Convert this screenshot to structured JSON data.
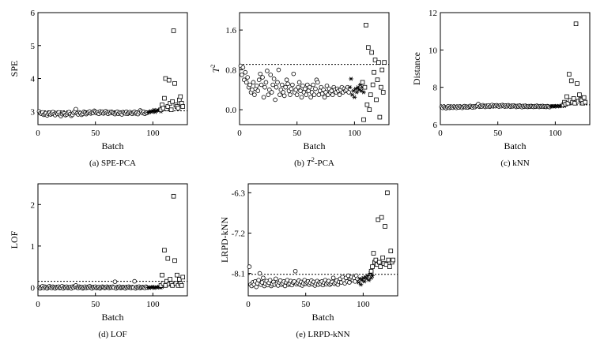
{
  "chart_data": [
    {
      "id": "a",
      "type": "scatter",
      "caption": "(a) SPE-PCA",
      "ylabel": "SPE",
      "xlabel": "Batch",
      "xlim": [
        0,
        130
      ],
      "ylim": [
        2.6,
        6
      ],
      "xticks": [
        0,
        50,
        100
      ],
      "yticks": [
        3,
        4,
        5,
        6
      ],
      "ytick_labels": [
        "3",
        "4",
        "5",
        "6"
      ],
      "control_limit": 3.02,
      "training": {
        "start": 1,
        "values": [
          3.0,
          2.95,
          2.93,
          2.97,
          2.9,
          2.92,
          2.95,
          2.88,
          2.93,
          2.96,
          2.91,
          2.94,
          2.98,
          2.92,
          2.89,
          2.95,
          2.93,
          2.97,
          2.9,
          2.86,
          2.92,
          2.96,
          2.94,
          2.89,
          2.91,
          2.95,
          2.98,
          2.92,
          2.87,
          2.9,
          2.96,
          3.0,
          3.07,
          2.94,
          2.91,
          2.97,
          2.95,
          2.9,
          2.93,
          2.99,
          2.96,
          2.92,
          2.95,
          2.98,
          3.0,
          2.94,
          2.97,
          2.96,
          3.02,
          2.99,
          2.95,
          2.97,
          2.93,
          3.0,
          2.96,
          2.99,
          2.94,
          2.97,
          3.01,
          2.96,
          2.93,
          2.98,
          2.95,
          2.99,
          2.97,
          2.94,
          2.92,
          2.96,
          2.99,
          2.93,
          2.97,
          2.95,
          2.91,
          2.98,
          2.96,
          2.94,
          2.99,
          2.93,
          2.96,
          2.98,
          2.95,
          2.93,
          2.97,
          2.99,
          2.94,
          2.96,
          2.92,
          2.98,
          3.03,
          3.0,
          2.95,
          2.99,
          2.93,
          2.97,
          2.96
        ]
      },
      "normal_test": {
        "start": 96,
        "values": [
          2.97,
          2.98,
          3.01,
          2.99,
          3.0,
          3.05,
          2.98,
          3.02,
          3.04,
          3.03,
          3.06,
          3.0,
          3.07
        ]
      },
      "fault_test": {
        "start": 107,
        "values": [
          3.05,
          3.2,
          3.1,
          3.4,
          4.0,
          3.08,
          3.15,
          3.95,
          3.25,
          3.05,
          3.3,
          5.45,
          3.85,
          3.2,
          3.15,
          3.1,
          3.35,
          3.45,
          3.25,
          3.15
        ]
      }
    },
    {
      "id": "b",
      "type": "scatter",
      "caption_pre": "(b) ",
      "caption_sym": "T",
      "caption_sup": "2",
      "caption_post": "-PCA",
      "ylabel_sym": "T",
      "ylabel_sup": "2",
      "xlabel": "Batch",
      "xlim": [
        0,
        130
      ],
      "ylim": [
        -0.3,
        1.95
      ],
      "xticks": [
        0,
        50,
        100
      ],
      "yticks": [
        0.0,
        0.8,
        1.6
      ],
      "ytick_labels": [
        "0.0",
        "0.8",
        "1.6"
      ],
      "control_limit": 0.91,
      "training": {
        "start": 1,
        "values": [
          0.88,
          0.7,
          0.85,
          0.6,
          0.75,
          0.55,
          0.65,
          0.45,
          0.5,
          0.35,
          0.4,
          0.55,
          0.3,
          0.42,
          0.48,
          0.38,
          0.6,
          0.72,
          0.5,
          0.65,
          0.25,
          0.45,
          0.55,
          0.78,
          0.3,
          0.4,
          0.7,
          0.35,
          0.5,
          0.62,
          0.2,
          0.45,
          0.55,
          0.8,
          0.3,
          0.4,
          0.5,
          0.35,
          0.28,
          0.45,
          0.6,
          0.52,
          0.38,
          0.3,
          0.42,
          0.5,
          0.72,
          0.35,
          0.4,
          0.3,
          0.45,
          0.55,
          0.38,
          0.25,
          0.48,
          0.35,
          0.42,
          0.3,
          0.5,
          0.38,
          0.45,
          0.25,
          0.35,
          0.5,
          0.3,
          0.42,
          0.6,
          0.55,
          0.3,
          0.38,
          0.45,
          0.32,
          0.4,
          0.25,
          0.35,
          0.48,
          0.3,
          0.42,
          0.35,
          0.38,
          0.3,
          0.45,
          0.4,
          0.35,
          0.42,
          0.38,
          0.3,
          0.4,
          0.45,
          0.35,
          0.42,
          0.38,
          0.4,
          0.45,
          0.35
        ]
      },
      "normal_test": {
        "start": 96,
        "values": [
          0.45,
          0.62,
          0.3,
          0.38,
          0.25,
          0.42,
          0.35,
          0.45,
          0.4,
          0.5,
          0.38,
          0.45,
          0.35
        ]
      },
      "fault_test": {
        "start": 107,
        "values": [
          0.55,
          -0.2,
          0.45,
          1.7,
          0.1,
          1.25,
          0.0,
          0.3,
          1.15,
          0.5,
          0.75,
          1.0,
          0.2,
          0.6,
          0.95,
          -0.15,
          0.45,
          0.8,
          0.35,
          0.95
        ]
      }
    },
    {
      "id": "c",
      "type": "scatter",
      "caption": "(c) kNN",
      "ylabel": "Distance",
      "xlabel": "Batch",
      "xlim": [
        0,
        130
      ],
      "ylim": [
        6,
        12
      ],
      "xticks": [
        0,
        50,
        100
      ],
      "yticks": [
        6,
        8,
        10,
        12
      ],
      "ytick_labels": [
        "6",
        "8",
        "10",
        "12"
      ],
      "control_limit": 7.06,
      "training": {
        "start": 1,
        "values": [
          6.95,
          6.9,
          6.97,
          6.92,
          6.88,
          6.94,
          6.98,
          6.9,
          6.93,
          6.96,
          6.91,
          6.97,
          6.94,
          6.9,
          6.96,
          6.92,
          6.98,
          6.94,
          6.9,
          6.95,
          6.99,
          6.93,
          6.96,
          6.92,
          6.97,
          7.0,
          6.95,
          6.92,
          6.98,
          6.94,
          6.99,
          7.02,
          7.1,
          6.96,
          7.0,
          6.97,
          7.04,
          6.99,
          6.95,
          7.01,
          6.98,
          7.03,
          6.96,
          7.0,
          7.05,
          6.98,
          7.02,
          6.99,
          7.04,
          7.0,
          6.97,
          7.03,
          6.99,
          7.05,
          7.01,
          6.97,
          7.02,
          6.98,
          7.04,
          7.0,
          6.96,
          7.01,
          6.98,
          7.03,
          6.99,
          6.95,
          7.0,
          6.97,
          7.02,
          6.98,
          6.94,
          7.0,
          6.96,
          7.01,
          6.97,
          6.95,
          6.99,
          6.96,
          7.0,
          6.97,
          6.95,
          6.99,
          6.96,
          7.01,
          6.98,
          6.95,
          6.99,
          6.97,
          7.0,
          6.96,
          6.98,
          6.95,
          6.99,
          6.97,
          6.94
        ]
      },
      "normal_test": {
        "start": 96,
        "values": [
          6.97,
          6.99,
          7.0,
          6.96,
          6.98,
          7.01,
          6.97,
          7.0,
          6.98,
          7.02,
          6.99,
          7.03,
          7.0
        ]
      },
      "fault_test": {
        "start": 107,
        "values": [
          7.05,
          7.2,
          7.1,
          7.5,
          7.15,
          8.7,
          7.3,
          8.35,
          7.2,
          7.4,
          7.15,
          11.4,
          8.2,
          7.25,
          7.6,
          7.35,
          7.3,
          7.15,
          7.45,
          7.2
        ]
      }
    },
    {
      "id": "d",
      "type": "scatter",
      "caption": "(d) LOF",
      "ylabel": "LOF",
      "xlabel": "Batch",
      "xlim": [
        0,
        130
      ],
      "ylim": [
        -0.2,
        2.5
      ],
      "xticks": [
        0,
        50,
        100
      ],
      "yticks": [
        0,
        1,
        2
      ],
      "ytick_labels": [
        "0",
        "1",
        "2"
      ],
      "control_limit": 0.15,
      "training": {
        "start": 1,
        "values": [
          0.0,
          -0.02,
          0.01,
          0.03,
          -0.01,
          0.02,
          0.0,
          -0.02,
          0.01,
          0.03,
          0.0,
          -0.01,
          0.02,
          0.0,
          -0.02,
          0.01,
          0.0,
          0.02,
          -0.01,
          0.0,
          0.03,
          -0.02,
          0.01,
          0.0,
          0.02,
          -0.01,
          0.0,
          0.01,
          -0.02,
          0.02,
          0.0,
          0.03,
          0.05,
          0.0,
          -0.01,
          0.02,
          0.0,
          0.01,
          -0.02,
          0.0,
          0.02,
          -0.01,
          0.01,
          0.0,
          0.03,
          0.0,
          -0.02,
          0.01,
          0.0,
          0.02,
          -0.01,
          0.0,
          0.01,
          -0.02,
          0.0,
          0.02,
          0.01,
          -0.01,
          0.0,
          0.02,
          0.0,
          -0.01,
          0.01,
          0.0,
          0.02,
          0.0,
          0.14,
          -0.02,
          0.01,
          0.0,
          0.02,
          -0.01,
          0.0,
          0.01,
          0.0,
          -0.02,
          0.01,
          0.0,
          0.02,
          0.0,
          -0.01,
          0.01,
          0.0,
          0.15,
          -0.02,
          0.01,
          0.0,
          0.02,
          -0.01,
          0.0,
          0.01,
          0.0,
          -0.01,
          0.02,
          0.0
        ]
      },
      "normal_test": {
        "start": 96,
        "values": [
          0.0,
          -0.01,
          0.01,
          0.0,
          0.02,
          -0.01,
          0.0,
          0.01,
          0.0,
          0.02,
          0.01,
          0.0,
          0.02
        ]
      },
      "fault_test": {
        "start": 107,
        "values": [
          0.05,
          0.3,
          0.1,
          0.9,
          0.05,
          0.15,
          0.7,
          0.08,
          0.2,
          0.1,
          0.05,
          2.2,
          0.65,
          0.1,
          0.3,
          0.05,
          0.2,
          0.1,
          0.05,
          0.25
        ]
      }
    },
    {
      "id": "e",
      "type": "scatter",
      "caption": "(e) LRPD-kNN",
      "ylabel": "LRPD-kNN",
      "xlabel": "Batch",
      "xlim": [
        0,
        130
      ],
      "ylim": [
        -8.6,
        -6.1
      ],
      "xticks": [
        0,
        50,
        100
      ],
      "yticks": [
        -8.1,
        -7.2,
        -6.3
      ],
      "ytick_labels": [
        "-8.1",
        "-7.2",
        "-6.3"
      ],
      "control_limit": -8.12,
      "training": {
        "start": 1,
        "values": [
          -7.95,
          -8.35,
          -8.38,
          -8.3,
          -8.35,
          -8.28,
          -8.4,
          -8.32,
          -8.25,
          -8.1,
          -8.35,
          -8.3,
          -8.2,
          -8.38,
          -8.33,
          -8.27,
          -8.36,
          -8.31,
          -8.25,
          -8.38,
          -8.34,
          -8.29,
          -8.35,
          -8.22,
          -8.33,
          -8.37,
          -8.3,
          -8.26,
          -8.35,
          -8.32,
          -8.28,
          -8.38,
          -8.3,
          -8.25,
          -8.35,
          -8.33,
          -8.27,
          -8.36,
          -8.3,
          -8.28,
          -8.05,
          -8.34,
          -8.31,
          -8.26,
          -8.35,
          -8.29,
          -8.37,
          -8.32,
          -8.25,
          -8.33,
          -8.3,
          -8.28,
          -8.35,
          -8.31,
          -8.26,
          -8.34,
          -8.29,
          -8.37,
          -8.32,
          -8.27,
          -8.35,
          -8.3,
          -8.33,
          -8.28,
          -8.36,
          -8.31,
          -8.25,
          -8.34,
          -8.3,
          -8.27,
          -8.35,
          -8.32,
          -8.29,
          -8.2,
          -8.33,
          -8.3,
          -8.26,
          -8.35,
          -8.29,
          -8.22,
          -8.3,
          -8.18,
          -8.25,
          -8.32,
          -8.2,
          -8.28,
          -8.15,
          -8.3,
          -8.22,
          -8.18,
          -8.25,
          -8.2,
          -8.28,
          -8.15,
          -8.22
        ]
      },
      "normal_test": {
        "start": 96,
        "values": [
          -8.3,
          -8.22,
          -8.35,
          -8.25,
          -8.2,
          -8.28,
          -8.18,
          -8.22,
          -8.15,
          -8.25,
          -8.1,
          -8.2,
          -8.15
        ]
      },
      "fault_test": {
        "start": 107,
        "values": [
          -8.05,
          -7.95,
          -7.65,
          -7.85,
          -7.8,
          -7.9,
          -6.9,
          -7.85,
          -7.95,
          -6.85,
          -7.75,
          -7.88,
          -7.05,
          -7.9,
          -6.3,
          -7.8,
          -7.95,
          -7.6,
          -7.85,
          -7.8
        ]
      }
    }
  ]
}
